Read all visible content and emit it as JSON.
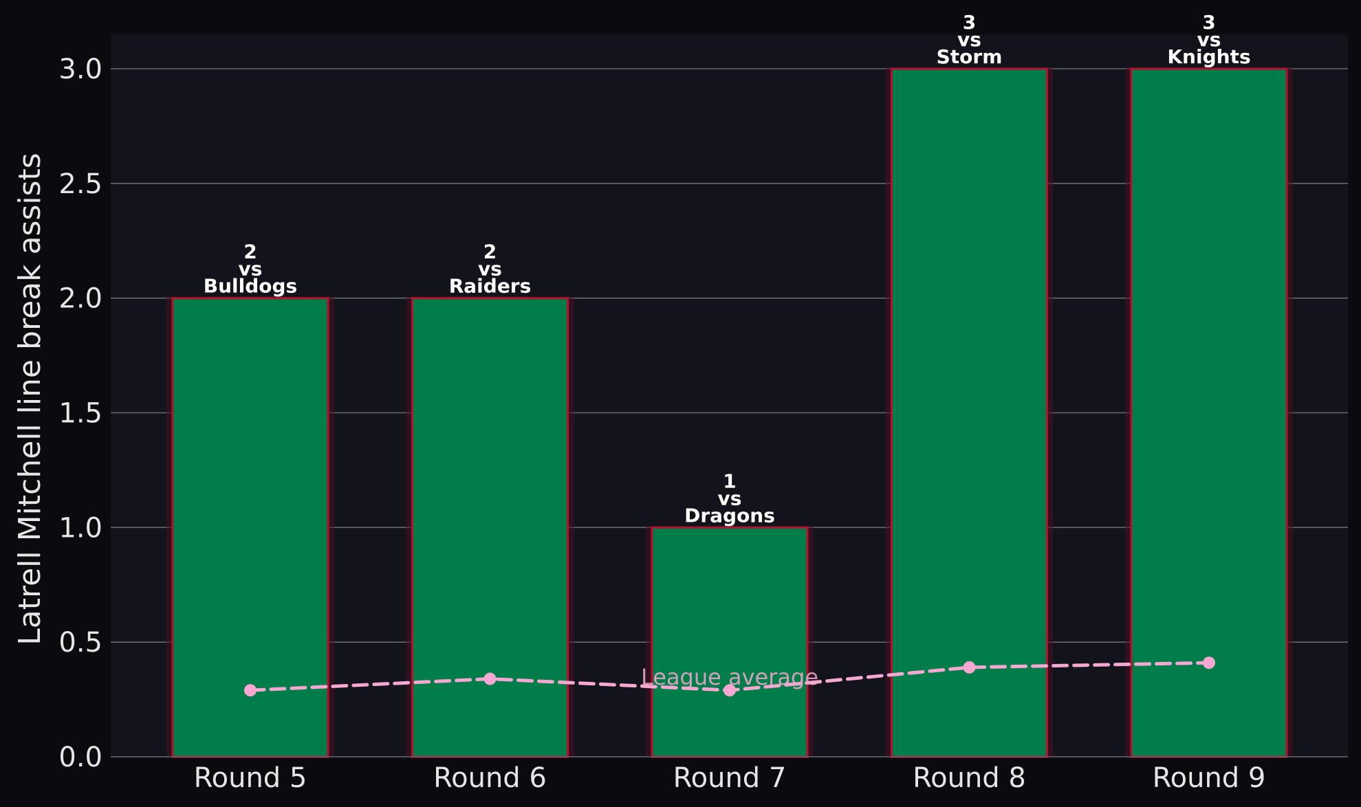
{
  "chart_data": {
    "type": "bar",
    "categories": [
      "Round 5",
      "Round 6",
      "Round 7",
      "Round 8",
      "Round 9"
    ],
    "series": [
      {
        "values": [
          2,
          2,
          1,
          3,
          3
        ],
        "bar_labels": [
          "2\nvs\nBulldogs",
          "2\nvs\nRaiders",
          "1\nvs\nDragons",
          "3\nvs\nStorm",
          "3\nvs\nKnights"
        ]
      },
      {
        "name": "League average",
        "type": "line",
        "values": [
          0.29,
          0.34,
          0.29,
          0.39,
          0.41
        ]
      }
    ],
    "title": "",
    "xlabel": "",
    "ylabel": "Latrell Mitchell line break assists",
    "ylim": [
      0,
      3.15
    ],
    "yticks": [
      0.0,
      0.5,
      1.0,
      1.5,
      2.0,
      2.5,
      3.0
    ],
    "ytick_labels": [
      "0.0",
      "0.5",
      "1.0",
      "1.5",
      "2.0",
      "2.5",
      "3.0"
    ],
    "grid": "horizontal",
    "colors": {
      "page_background": "#0b0b0f",
      "plot_background": "#12131b",
      "bar_fill": "#007d48",
      "bar_edge": "#b3112e",
      "bar_glow": "#4a1022",
      "grid": "#6a6a70",
      "average_line": "#f7a8d2",
      "text": "#e6e6e6",
      "bar_label": "#ffffff"
    }
  }
}
